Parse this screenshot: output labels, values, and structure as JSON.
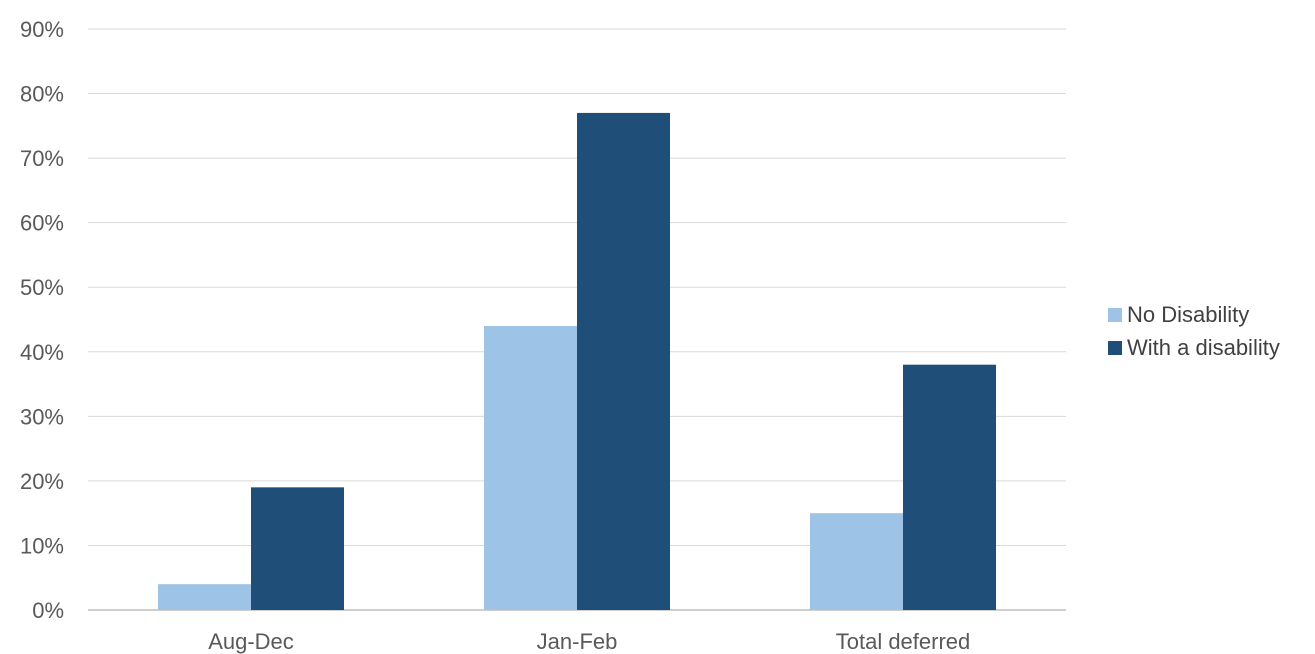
{
  "chart_data": {
    "type": "bar",
    "categories": [
      "Aug-Dec",
      "Jan-Feb",
      "Total deferred"
    ],
    "series": [
      {
        "name": "No Disability",
        "values": [
          4,
          44,
          15
        ],
        "color": "#9dc3e6"
      },
      {
        "name": "With a disability",
        "values": [
          19,
          77,
          38
        ],
        "color": "#1f4e79"
      }
    ],
    "y_ticks": [
      "0%",
      "10%",
      "20%",
      "30%",
      "40%",
      "50%",
      "60%",
      "70%",
      "80%",
      "90%"
    ],
    "ylim": [
      0,
      90
    ],
    "y_unit": "%",
    "grid": true,
    "grid_color": "#d9d9d9",
    "legend_position": "right"
  }
}
